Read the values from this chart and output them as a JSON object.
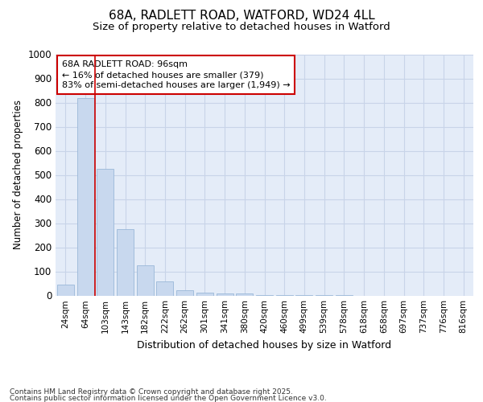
{
  "title1": "68A, RADLETT ROAD, WATFORD, WD24 4LL",
  "title2": "Size of property relative to detached houses in Watford",
  "xlabel": "Distribution of detached houses by size in Watford",
  "ylabel": "Number of detached properties",
  "categories": [
    "24sqm",
    "64sqm",
    "103sqm",
    "143sqm",
    "182sqm",
    "222sqm",
    "262sqm",
    "301sqm",
    "341sqm",
    "380sqm",
    "420sqm",
    "460sqm",
    "499sqm",
    "539sqm",
    "578sqm",
    "618sqm",
    "658sqm",
    "697sqm",
    "737sqm",
    "776sqm",
    "816sqm"
  ],
  "values": [
    46,
    820,
    525,
    275,
    125,
    57,
    22,
    12,
    10,
    8,
    3,
    2,
    1,
    1,
    1,
    0,
    0,
    0,
    0,
    0,
    0
  ],
  "bar_color": "#c8d8ee",
  "bar_edge_color": "#9ab8d8",
  "annotation_line1": "68A RADLETT ROAD: 96sqm",
  "annotation_line2": "← 16% of detached houses are smaller (379)",
  "annotation_line3": "83% of semi-detached houses are larger (1,949) →",
  "annotation_box_facecolor": "#ffffff",
  "annotation_box_edgecolor": "#cc0000",
  "vline_color": "#cc0000",
  "vline_x": 1.5,
  "ylim": [
    0,
    1000
  ],
  "yticks": [
    0,
    100,
    200,
    300,
    400,
    500,
    600,
    700,
    800,
    900,
    1000
  ],
  "grid_color": "#c8d4e8",
  "background_color": "#e4ecf8",
  "footer1": "Contains HM Land Registry data © Crown copyright and database right 2025.",
  "footer2": "Contains public sector information licensed under the Open Government Licence v3.0."
}
